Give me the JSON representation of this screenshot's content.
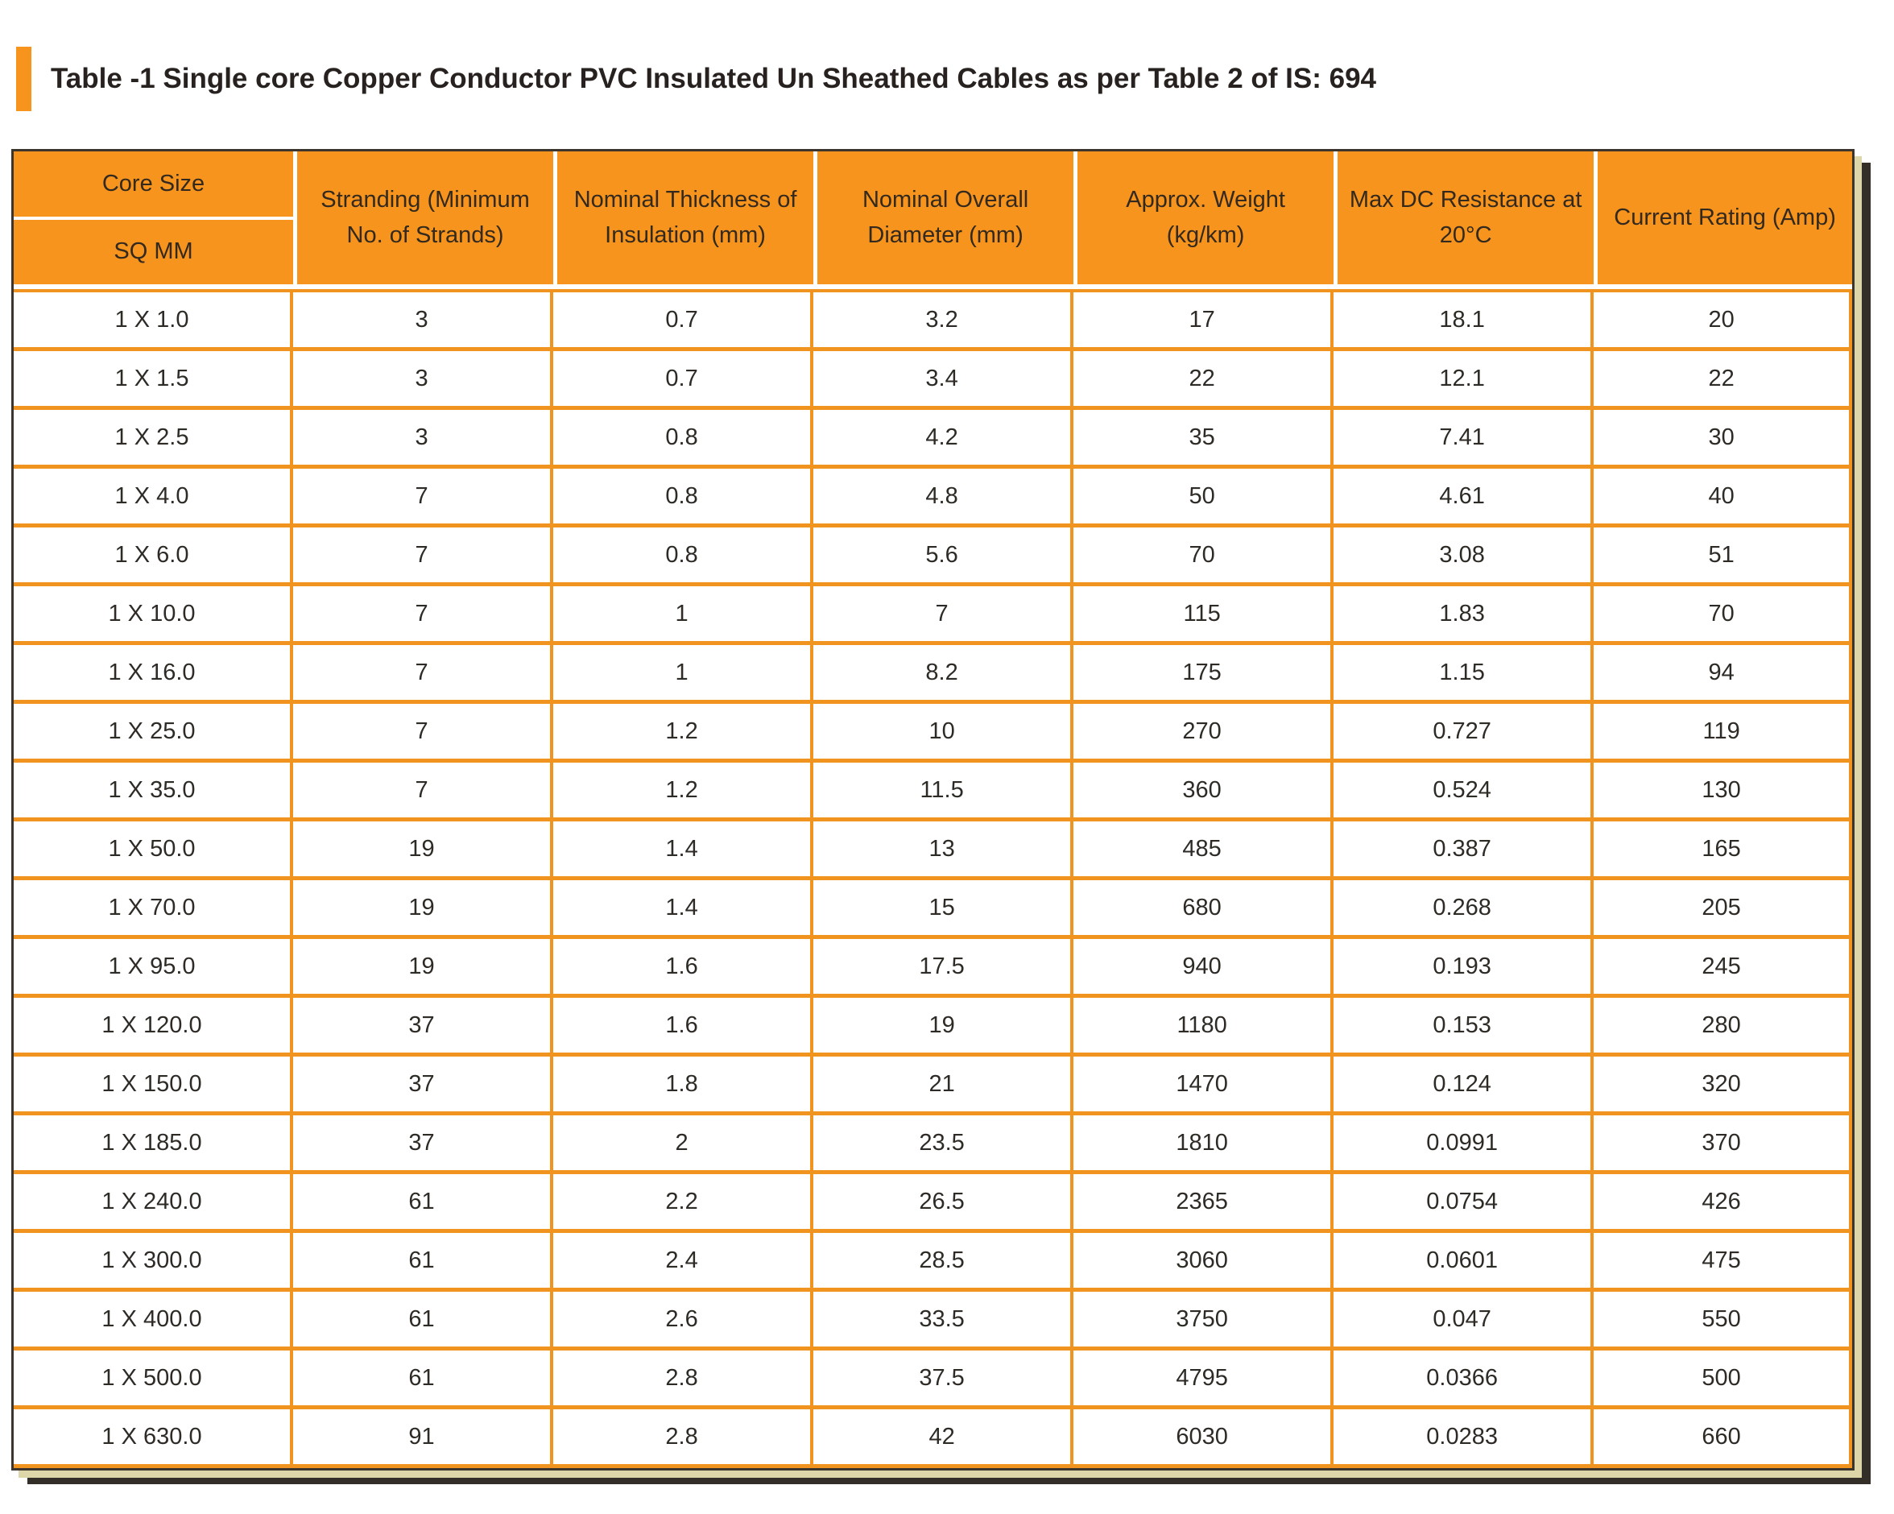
{
  "title": {
    "text": "Table -1 Single core Copper Conductor PVC Insulated Un Sheathed Cables as per Table 2 of IS: 694"
  },
  "colors": {
    "accent_orange": "#F6941E",
    "border_orange": "#F0941F",
    "outer_border_dark": "#3B352E",
    "shadow_khaki": "#DDD6A9",
    "shadow_dark": "#332E28",
    "title_text": "#272220",
    "cell_text": "#2E2B27"
  },
  "table": {
    "header": {
      "core_size_top": "Core Size",
      "core_size_bottom": "SQ MM",
      "columns": [
        "Stranding (Minimum No. of Strands)",
        "Nominal Thickness of Insulation (mm)",
        "Nominal Overall Diameter (mm)",
        "Approx. Weight (kg/km)",
        "Max DC Resistance at 20°C",
        "Current Rating (Amp)"
      ]
    },
    "rows": [
      [
        "1 X 1.0",
        "3",
        "0.7",
        "3.2",
        "17",
        "18.1",
        "20"
      ],
      [
        "1 X 1.5",
        "3",
        "0.7",
        "3.4",
        "22",
        "12.1",
        "22"
      ],
      [
        "1 X 2.5",
        "3",
        "0.8",
        "4.2",
        "35",
        "7.41",
        "30"
      ],
      [
        "1 X 4.0",
        "7",
        "0.8",
        "4.8",
        "50",
        "4.61",
        "40"
      ],
      [
        "1 X 6.0",
        "7",
        "0.8",
        "5.6",
        "70",
        "3.08",
        "51"
      ],
      [
        "1 X 10.0",
        "7",
        "1",
        "7",
        "115",
        "1.83",
        "70"
      ],
      [
        "1 X 16.0",
        "7",
        "1",
        "8.2",
        "175",
        "1.15",
        "94"
      ],
      [
        "1 X 25.0",
        "7",
        "1.2",
        "10",
        "270",
        "0.727",
        "119"
      ],
      [
        "1 X 35.0",
        "7",
        "1.2",
        "11.5",
        "360",
        "0.524",
        "130"
      ],
      [
        "1 X 50.0",
        "19",
        "1.4",
        "13",
        "485",
        "0.387",
        "165"
      ],
      [
        "1 X 70.0",
        "19",
        "1.4",
        "15",
        "680",
        "0.268",
        "205"
      ],
      [
        "1 X 95.0",
        "19",
        "1.6",
        "17.5",
        "940",
        "0.193",
        "245"
      ],
      [
        "1 X 120.0",
        "37",
        "1.6",
        "19",
        "1180",
        "0.153",
        "280"
      ],
      [
        "1 X 150.0",
        "37",
        "1.8",
        "21",
        "1470",
        "0.124",
        "320"
      ],
      [
        "1 X 185.0",
        "37",
        "2",
        "23.5",
        "1810",
        "0.0991",
        "370"
      ],
      [
        "1 X 240.0",
        "61",
        "2.2",
        "26.5",
        "2365",
        "0.0754",
        "426"
      ],
      [
        "1 X 300.0",
        "61",
        "2.4",
        "28.5",
        "3060",
        "0.0601",
        "475"
      ],
      [
        "1 X 400.0",
        "61",
        "2.6",
        "33.5",
        "3750",
        "0.047",
        "550"
      ],
      [
        "1 X 500.0",
        "61",
        "2.8",
        "37.5",
        "4795",
        "0.0366",
        "500"
      ],
      [
        "1 X 630.0",
        "91",
        "2.8",
        "42",
        "6030",
        "0.0283",
        "660"
      ]
    ]
  }
}
